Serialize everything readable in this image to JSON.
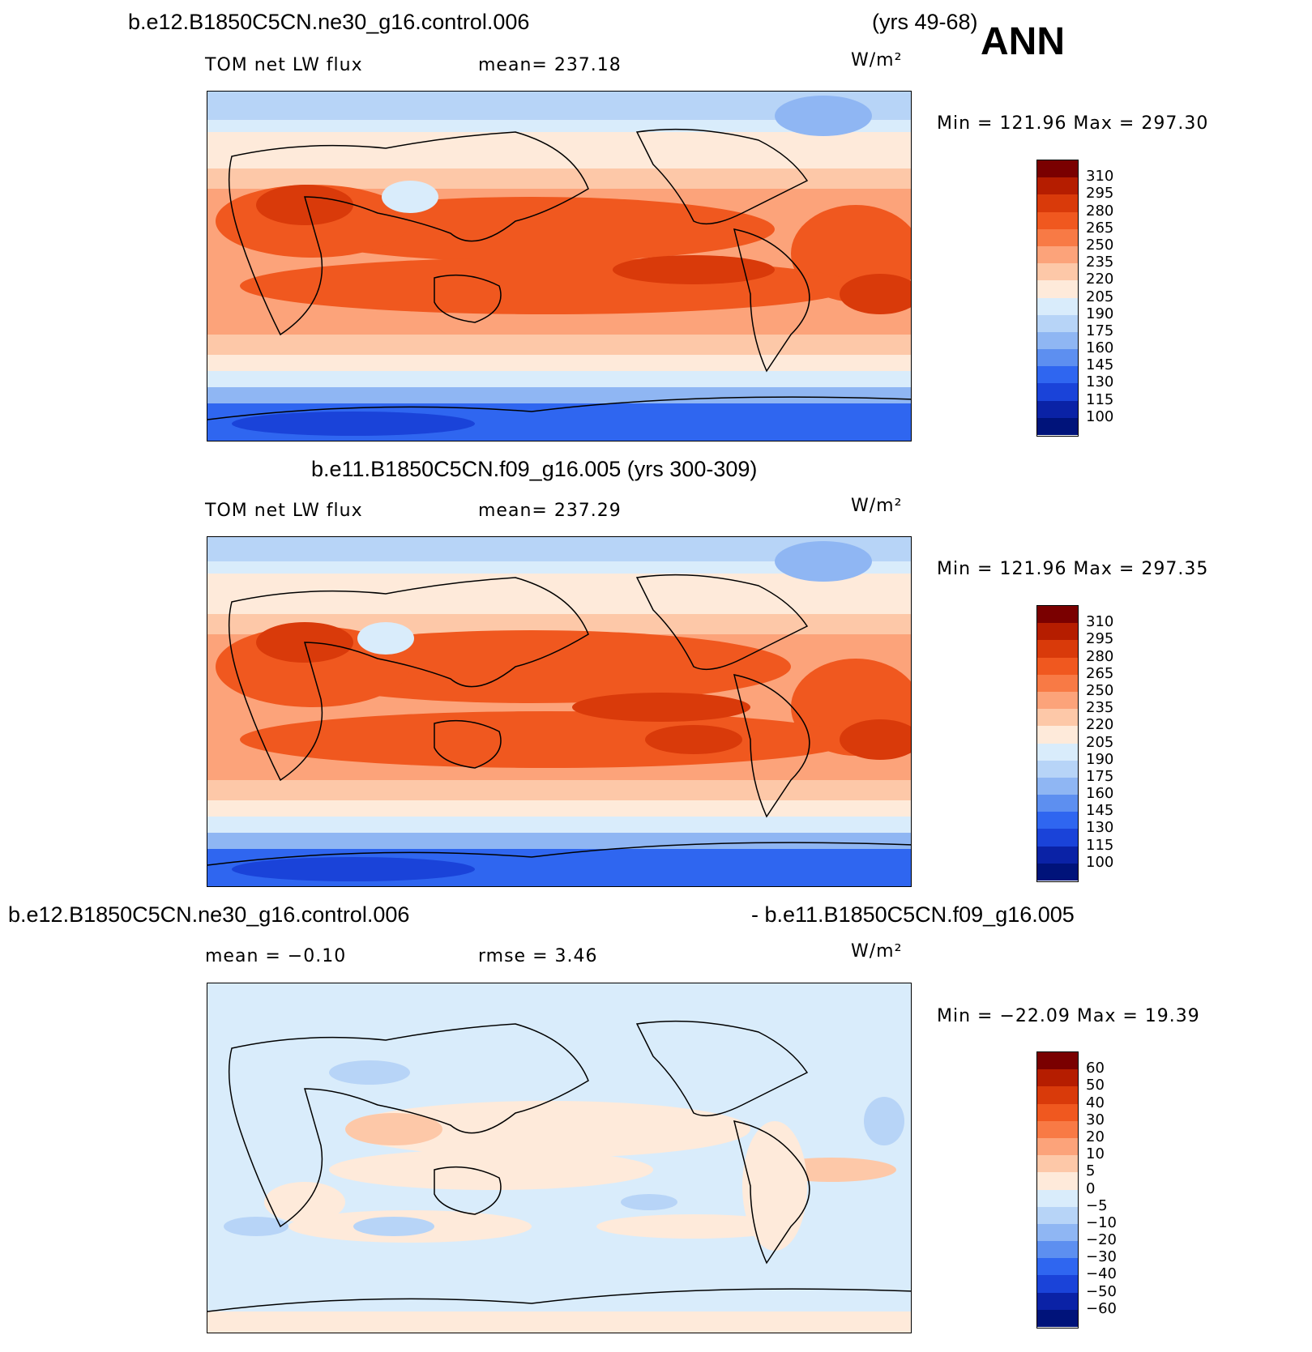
{
  "header": {
    "case_title": "b.e12.B1850C5CN.ne30_g16.control.006",
    "years": "(yrs 49-68)",
    "season": "ANN"
  },
  "panels": [
    {
      "title": "",
      "variable": "TOM net LW flux",
      "stat": "mean=  237.18",
      "units": "W/m²",
      "minmax": "Min  =  121.96  Max  =  297.30",
      "colorbar": {
        "labels": [
          "310",
          "295",
          "280",
          "265",
          "250",
          "235",
          "220",
          "205",
          "190",
          "175",
          "160",
          "145",
          "130",
          "115",
          "100"
        ],
        "colors": [
          "#7a0000",
          "#b51d00",
          "#d93a0a",
          "#f0581f",
          "#f87a45",
          "#fca37a",
          "#fdc8a8",
          "#feeada",
          "#d9ecfb",
          "#b7d4f7",
          "#8fb6f3",
          "#5d8ff0",
          "#2f66f0",
          "#1a43d9",
          "#0a22a6",
          "#00137a"
        ]
      }
    },
    {
      "title": "b.e11.B1850C5CN.f09_g16.005 (yrs 300-309)",
      "variable": "TOM net LW flux",
      "stat": "mean=  237.29",
      "units": "W/m²",
      "minmax": "Min  =  121.96  Max  =  297.35",
      "colorbar": {
        "labels": [
          "310",
          "295",
          "280",
          "265",
          "250",
          "235",
          "220",
          "205",
          "190",
          "175",
          "160",
          "145",
          "130",
          "115",
          "100"
        ],
        "colors": [
          "#7a0000",
          "#b51d00",
          "#d93a0a",
          "#f0581f",
          "#f87a45",
          "#fca37a",
          "#fdc8a8",
          "#feeada",
          "#d9ecfb",
          "#b7d4f7",
          "#8fb6f3",
          "#5d8ff0",
          "#2f66f0",
          "#1a43d9",
          "#0a22a6",
          "#00137a"
        ]
      }
    },
    {
      "title_left": "b.e12.B1850C5CN.ne30_g16.control.006",
      "title_right": "- b.e11.B1850C5CN.f09_g16.005",
      "stat_mean": "mean  =   −0.10",
      "stat_rmse": "rmse  =     3.46",
      "units": "W/m²",
      "minmax": "Min  =  −22.09  Max  =   19.39",
      "colorbar": {
        "labels": [
          "60",
          "50",
          "40",
          "30",
          "20",
          "10",
          "5",
          "0",
          "−5",
          "−10",
          "−20",
          "−30",
          "−40",
          "−50",
          "−60"
        ],
        "colors": [
          "#7a0000",
          "#b51d00",
          "#d93a0a",
          "#f0581f",
          "#f87a45",
          "#fca37a",
          "#fdc8a8",
          "#feeada",
          "#d9ecfb",
          "#b7d4f7",
          "#8fb6f3",
          "#5d8ff0",
          "#2f66f0",
          "#1a43d9",
          "#0a22a6",
          "#00137a"
        ]
      }
    }
  ]
}
